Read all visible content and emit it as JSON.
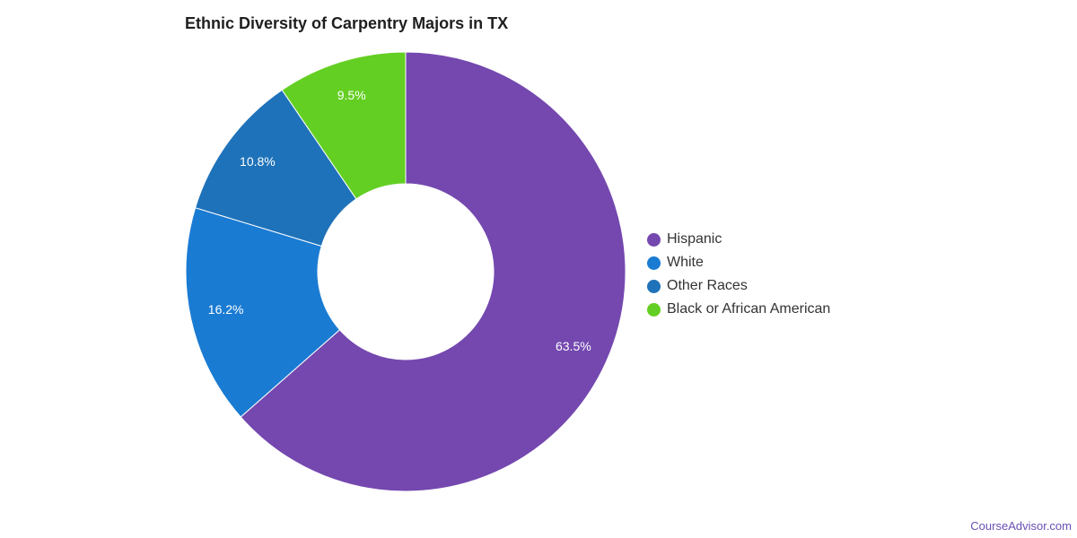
{
  "chart_data": {
    "type": "pie",
    "title": "Ethnic Diversity of Carpentry Majors in TX",
    "donut": true,
    "slices": [
      {
        "label": "Hispanic",
        "value": 63.5,
        "display": "63.5%",
        "color": "#7448af"
      },
      {
        "label": "White",
        "value": 16.2,
        "display": "16.2%",
        "color": "#1a7bd3"
      },
      {
        "label": "Other Races",
        "value": 10.8,
        "display": "10.8%",
        "color": "#1e72b9"
      },
      {
        "label": "Black or African American",
        "value": 9.5,
        "display": "9.5%",
        "color": "#63cf22"
      }
    ],
    "legend_position": "right"
  },
  "watermark": "CourseAdvisor.com"
}
